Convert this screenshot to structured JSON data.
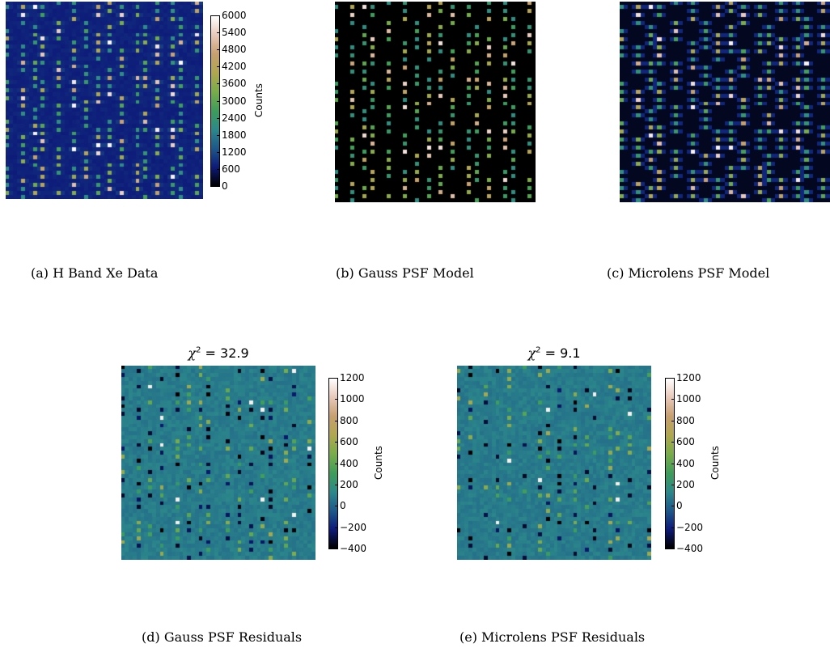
{
  "figure": {
    "captions": {
      "a": "(a) H Band Xe Data",
      "b": "(b) Gauss PSF Model",
      "c": "(c) Microlens PSF Model",
      "d": "(d) Gauss PSF Residuals",
      "e": "(e) Microlens PSF Residuals"
    },
    "titles": {
      "d": {
        "symbol": "χ",
        "sup": "2",
        "rest": " = 32.9"
      },
      "e": {
        "symbol": "χ",
        "sup": "2",
        "rest": " = 9.1"
      }
    },
    "colorbar_label": "Counts"
  },
  "chart_data": [
    {
      "type": "heatmap",
      "id": "a",
      "caption": "(a) H Band Xe Data",
      "colormap": "gist_earth",
      "colorbar": {
        "label": "Counts",
        "range": [
          0,
          6000
        ],
        "ticks": [
          "6000",
          "5400",
          "4800",
          "4200",
          "3600",
          "3000",
          "2400",
          "1800",
          "1200",
          "600",
          "0"
        ]
      }
    },
    {
      "type": "heatmap",
      "id": "b",
      "caption": "(b) Gauss PSF Model",
      "colormap": "gist_earth"
    },
    {
      "type": "heatmap",
      "id": "c",
      "caption": "(c) Microlens PSF Model",
      "colormap": "gist_earth"
    },
    {
      "type": "heatmap",
      "id": "d",
      "caption": "(d) Gauss PSF Residuals",
      "title": "χ2 = 32.9",
      "colormap": "gist_earth",
      "colorbar": {
        "label": "Counts",
        "range": [
          -400,
          1200
        ],
        "ticks": [
          "1200",
          "1000",
          "800",
          "600",
          "400",
          "200",
          "0",
          "−200",
          "−400"
        ]
      }
    },
    {
      "type": "heatmap",
      "id": "e",
      "caption": "(e) Microlens PSF Residuals",
      "title": "χ2 = 9.1",
      "colormap": "gist_earth",
      "colorbar": {
        "label": "Counts",
        "range": [
          -400,
          1200
        ],
        "ticks": [
          "1200",
          "1000",
          "800",
          "600",
          "400",
          "200",
          "0",
          "−200",
          "−400"
        ]
      }
    }
  ],
  "colors": {
    "gist_earth_stops": [
      "#000000",
      "#0e1c7a",
      "#1e5a8a",
      "#2d8a8a",
      "#3f9e5a",
      "#7aad4a",
      "#b0a850",
      "#c8a070",
      "#e8c8b8",
      "#ffffff"
    ],
    "residual_background": "#3a8a84",
    "model_background": "#000000"
  }
}
